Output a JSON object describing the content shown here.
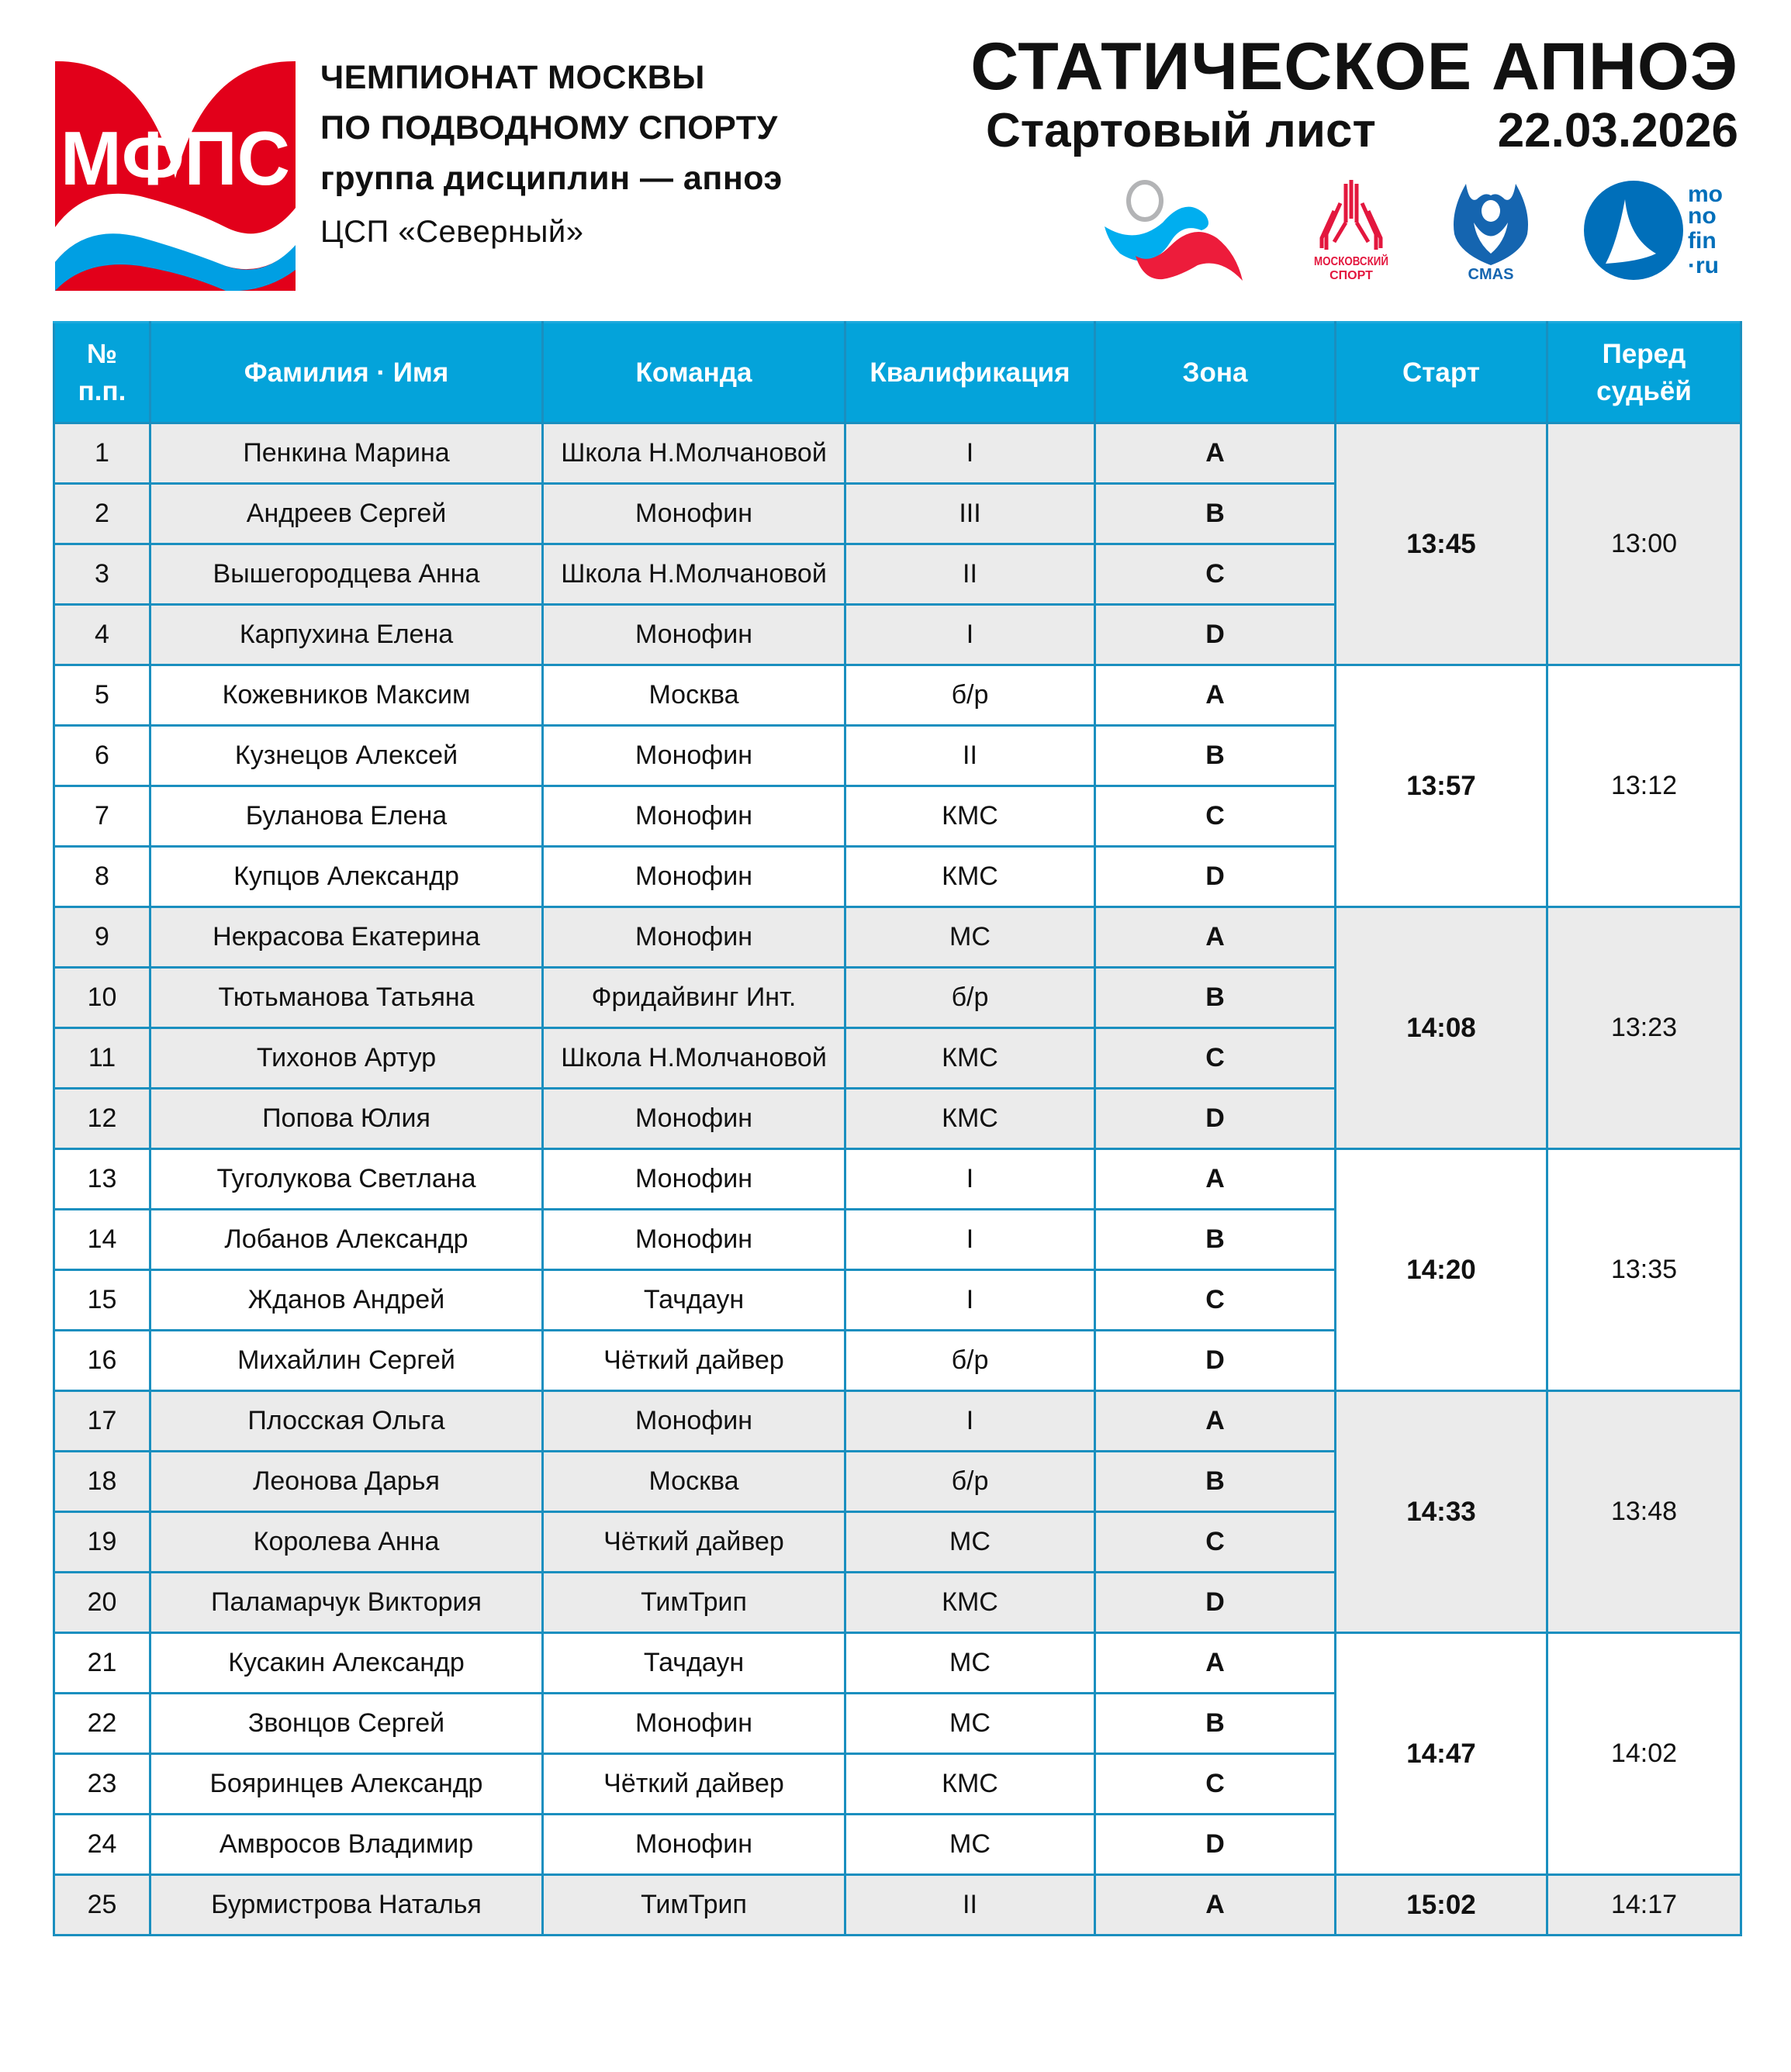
{
  "logo": {
    "text": "МФПС",
    "colors": {
      "red": "#e2001a",
      "blue": "#009fe3"
    }
  },
  "org": {
    "line1": "ЧЕМПИОНАТ МОСКВЫ",
    "line2": "ПО ПОДВОДНОМУ СПОРТУ",
    "line3": "группа дисциплин — апноэ",
    "venue": "ЦСП «Северный»"
  },
  "title": {
    "discipline": "СТАТИЧЕСКОЕ АПНОЭ",
    "subtitle": "Стартовый лист",
    "date": "22.03.2026"
  },
  "sponsors": {
    "moscow_sport": [
      "МОСКОВСКИЙ",
      "СПОРТ"
    ],
    "cmas": "CMAS",
    "monofin": [
      "mo",
      "no",
      "fin",
      "·ru"
    ]
  },
  "colors": {
    "header": "#04a3da",
    "border": "#1a8fbf",
    "shade": "#ebebeb"
  },
  "table": {
    "headers": {
      "num": [
        "№",
        "п.п."
      ],
      "name": "Фамилия · Имя",
      "team": "Команда",
      "qual": "Квалификация",
      "zone": "Зона",
      "start": "Старт",
      "judge": [
        "Перед",
        "судьёй"
      ]
    },
    "groups": [
      {
        "start": "13:45",
        "judge": "13:00",
        "rows": [
          {
            "n": "1",
            "name": "Пенкина Марина",
            "team": "Школа Н.Молчановой",
            "qual": "I",
            "zone": "A"
          },
          {
            "n": "2",
            "name": "Андреев Сергей",
            "team": "Монофин",
            "qual": "III",
            "zone": "B"
          },
          {
            "n": "3",
            "name": "Вышегородцева Анна",
            "team": "Школа Н.Молчановой",
            "qual": "II",
            "zone": "C"
          },
          {
            "n": "4",
            "name": "Карпухина Елена",
            "team": "Монофин",
            "qual": "I",
            "zone": "D"
          }
        ]
      },
      {
        "start": "13:57",
        "judge": "13:12",
        "rows": [
          {
            "n": "5",
            "name": "Кожевников Максим",
            "team": "Москва",
            "qual": "б/р",
            "zone": "A"
          },
          {
            "n": "6",
            "name": "Кузнецов Алексей",
            "team": "Монофин",
            "qual": "II",
            "zone": "B"
          },
          {
            "n": "7",
            "name": "Буланова Елена",
            "team": "Монофин",
            "qual": "КМС",
            "zone": "C"
          },
          {
            "n": "8",
            "name": "Купцов Александр",
            "team": "Монофин",
            "qual": "КМС",
            "zone": "D"
          }
        ]
      },
      {
        "start": "14:08",
        "judge": "13:23",
        "rows": [
          {
            "n": "9",
            "name": "Некрасова Екатерина",
            "team": "Монофин",
            "qual": "МС",
            "zone": "A"
          },
          {
            "n": "10",
            "name": "Тютьманова Татьяна",
            "team": "Фридайвинг Инт.",
            "qual": "б/р",
            "zone": "B"
          },
          {
            "n": "11",
            "name": "Тихонов Артур",
            "team": "Школа Н.Молчановой",
            "qual": "КМС",
            "zone": "C"
          },
          {
            "n": "12",
            "name": "Попова Юлия",
            "team": "Монофин",
            "qual": "КМС",
            "zone": "D"
          }
        ]
      },
      {
        "start": "14:20",
        "judge": "13:35",
        "rows": [
          {
            "n": "13",
            "name": "Туголукова Светлана",
            "team": "Монофин",
            "qual": "I",
            "zone": "A"
          },
          {
            "n": "14",
            "name": "Лобанов Александр",
            "team": "Монофин",
            "qual": "I",
            "zone": "B"
          },
          {
            "n": "15",
            "name": "Жданов Андрей",
            "team": "Тачдаун",
            "qual": "I",
            "zone": "C"
          },
          {
            "n": "16",
            "name": "Михайлин Сергей",
            "team": "Чёткий дайвер",
            "qual": "б/р",
            "zone": "D"
          }
        ]
      },
      {
        "start": "14:33",
        "judge": "13:48",
        "rows": [
          {
            "n": "17",
            "name": "Плосская Ольга",
            "team": "Монофин",
            "qual": "I",
            "zone": "A"
          },
          {
            "n": "18",
            "name": "Леонова Дарья",
            "team": "Москва",
            "qual": "б/р",
            "zone": "B"
          },
          {
            "n": "19",
            "name": "Королева Анна",
            "team": "Чёткий дайвер",
            "qual": "МС",
            "zone": "C"
          },
          {
            "n": "20",
            "name": "Паламарчук Виктория",
            "team": "ТимТрип",
            "qual": "КМС",
            "zone": "D"
          }
        ]
      },
      {
        "start": "14:47",
        "judge": "14:02",
        "rows": [
          {
            "n": "21",
            "name": "Кусакин Александр",
            "team": "Тачдаун",
            "qual": "МС",
            "zone": "A"
          },
          {
            "n": "22",
            "name": "Звонцов Сергей",
            "team": "Монофин",
            "qual": "МС",
            "zone": "B"
          },
          {
            "n": "23",
            "name": "Бояринцев Александр",
            "team": "Чёткий дайвер",
            "qual": "КМС",
            "zone": "C"
          },
          {
            "n": "24",
            "name": "Амвросов Владимир",
            "team": "Монофин",
            "qual": "МС",
            "zone": "D"
          }
        ]
      },
      {
        "start": "15:02",
        "judge": "14:17",
        "rows": [
          {
            "n": "25",
            "name": "Бурмистрова Наталья",
            "team": "ТимТрип",
            "qual": "II",
            "zone": "A"
          }
        ]
      }
    ]
  }
}
